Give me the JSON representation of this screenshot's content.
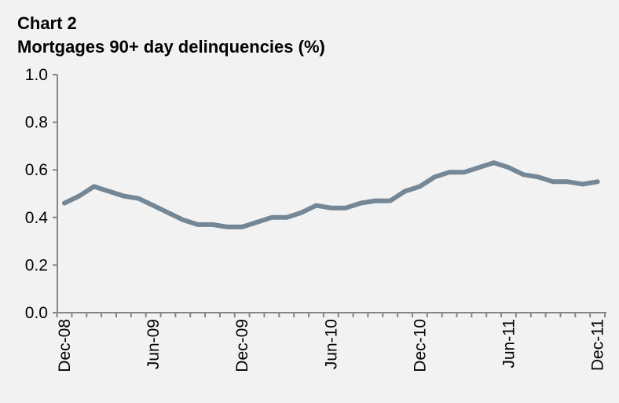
{
  "chart_data": {
    "type": "line",
    "title": "Chart 2",
    "subtitle": "Mortgages 90+ day delinquencies (%)",
    "xlabel": "",
    "ylabel": "",
    "ylim": [
      0,
      1.0
    ],
    "yticks": [
      "0.0",
      "0.2",
      "0.4",
      "0.6",
      "0.8",
      "1.0"
    ],
    "ytick_values": [
      0,
      0.2,
      0.4,
      0.6,
      0.8,
      1.0
    ],
    "xtick_labels": [
      "Dec-08",
      "Jun-09",
      "Dec-09",
      "Jun-10",
      "Dec-10",
      "Jun-11",
      "Dec-11"
    ],
    "x_start": "Dec-08",
    "x_frequency": "monthly",
    "grid": false,
    "legend": "none",
    "series": [
      {
        "name": "Mortgages 90+ day delinquencies",
        "color": "#738797",
        "values": [
          0.46,
          0.49,
          0.53,
          0.51,
          0.49,
          0.48,
          0.45,
          0.42,
          0.39,
          0.37,
          0.37,
          0.36,
          0.36,
          0.38,
          0.4,
          0.4,
          0.42,
          0.45,
          0.44,
          0.44,
          0.46,
          0.47,
          0.47,
          0.51,
          0.53,
          0.57,
          0.59,
          0.59,
          0.61,
          0.63,
          0.61,
          0.58,
          0.57,
          0.55,
          0.55,
          0.54,
          0.55
        ]
      }
    ]
  }
}
